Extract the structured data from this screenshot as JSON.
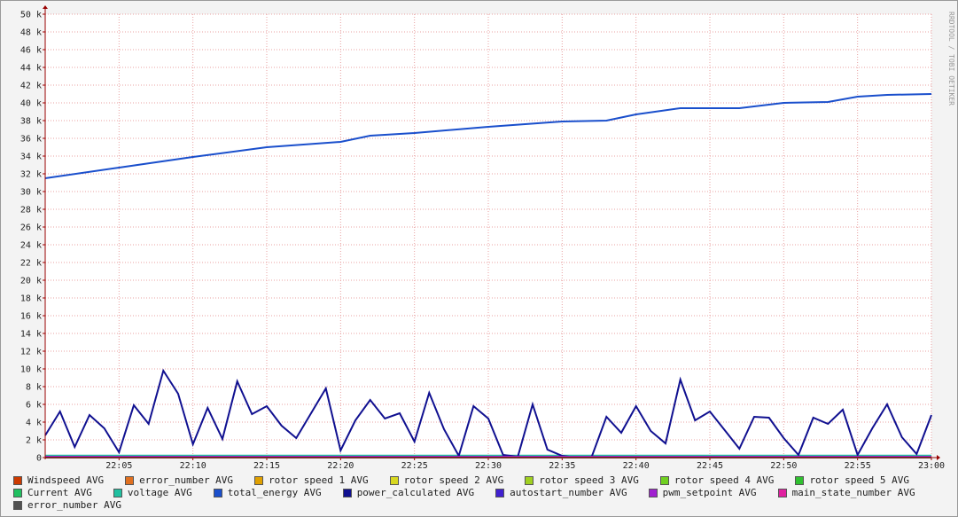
{
  "chart_data": {
    "type": "line",
    "watermark": "RRDTOOL / TOBI OETIKER",
    "x": [
      "22:00",
      "22:01",
      "22:02",
      "22:03",
      "22:04",
      "22:05",
      "22:06",
      "22:07",
      "22:08",
      "22:09",
      "22:10",
      "22:11",
      "22:12",
      "22:13",
      "22:14",
      "22:15",
      "22:16",
      "22:17",
      "22:18",
      "22:19",
      "22:20",
      "22:21",
      "22:22",
      "22:23",
      "22:24",
      "22:25",
      "22:26",
      "22:27",
      "22:28",
      "22:29",
      "22:30",
      "22:31",
      "22:32",
      "22:33",
      "22:34",
      "22:35",
      "22:36",
      "22:37",
      "22:38",
      "22:39",
      "22:40",
      "22:41",
      "22:42",
      "22:43",
      "22:44",
      "22:45",
      "22:46",
      "22:47",
      "22:48",
      "22:49",
      "22:50",
      "22:51",
      "22:52",
      "22:53",
      "22:54",
      "22:55",
      "22:56",
      "22:57",
      "22:58",
      "22:59",
      "23:00"
    ],
    "xlim": [
      "22:00",
      "23:00"
    ],
    "xticks": [
      "22:05",
      "22:10",
      "22:15",
      "22:20",
      "22:25",
      "22:30",
      "22:35",
      "22:40",
      "22:45",
      "22:50",
      "22:55",
      "23:00"
    ],
    "ylim": [
      0,
      50000
    ],
    "yticks": [
      {
        "value": 0,
        "label": "0"
      },
      {
        "value": 2000,
        "label": "2 k"
      },
      {
        "value": 4000,
        "label": "4 k"
      },
      {
        "value": 6000,
        "label": "6 k"
      },
      {
        "value": 8000,
        "label": "8 k"
      },
      {
        "value": 10000,
        "label": "10 k"
      },
      {
        "value": 12000,
        "label": "12 k"
      },
      {
        "value": 14000,
        "label": "14 k"
      },
      {
        "value": 16000,
        "label": "16 k"
      },
      {
        "value": 18000,
        "label": "18 k"
      },
      {
        "value": 20000,
        "label": "20 k"
      },
      {
        "value": 22000,
        "label": "22 k"
      },
      {
        "value": 24000,
        "label": "24 k"
      },
      {
        "value": 26000,
        "label": "26 k"
      },
      {
        "value": 28000,
        "label": "28 k"
      },
      {
        "value": 30000,
        "label": "30 k"
      },
      {
        "value": 32000,
        "label": "32 k"
      },
      {
        "value": 34000,
        "label": "34 k"
      },
      {
        "value": 36000,
        "label": "36 k"
      },
      {
        "value": 38000,
        "label": "38 k"
      },
      {
        "value": 40000,
        "label": "40 k"
      },
      {
        "value": 42000,
        "label": "42 k"
      },
      {
        "value": 44000,
        "label": "44 k"
      },
      {
        "value": 46000,
        "label": "46 k"
      },
      {
        "value": 48000,
        "label": "48 k"
      },
      {
        "value": 50000,
        "label": "50 k"
      }
    ],
    "grid": true,
    "series": [
      {
        "name": "Windspeed AVG",
        "color": "#cc3a00",
        "x": [
          "22:00",
          "23:00"
        ],
        "values": [
          5,
          5
        ]
      },
      {
        "name": "error_number AVG",
        "color": "#e07020",
        "x": [
          "22:00",
          "23:00"
        ],
        "values": [
          0,
          0
        ]
      },
      {
        "name": "rotor speed 1 AVG",
        "color": "#e0a000",
        "x": [
          "22:00",
          "23:00"
        ],
        "values": [
          0,
          0
        ]
      },
      {
        "name": "rotor speed 2 AVG",
        "color": "#d8d820",
        "x": [
          "22:00",
          "23:00"
        ],
        "values": [
          0,
          0
        ]
      },
      {
        "name": "rotor speed 3 AVG",
        "color": "#a0d020",
        "x": [
          "22:00",
          "23:00"
        ],
        "values": [
          0,
          0
        ]
      },
      {
        "name": "rotor speed 4 AVG",
        "color": "#70d020",
        "x": [
          "22:00",
          "23:00"
        ],
        "values": [
          0,
          0
        ]
      },
      {
        "name": "rotor speed 5 AVG",
        "color": "#30c030",
        "x": [
          "22:00",
          "23:00"
        ],
        "values": [
          0,
          0
        ]
      },
      {
        "name": "Current AVG",
        "color": "#20c060",
        "x": [
          "22:00",
          "23:00"
        ],
        "values": [
          0,
          0
        ]
      },
      {
        "name": "voltage AVG",
        "color": "#20c0a0",
        "x": [
          "22:00",
          "23:00"
        ],
        "values": [
          230,
          230
        ]
      },
      {
        "name": "total_energy AVG",
        "color": "#1a4fcc",
        "x": [
          "22:00",
          "22:05",
          "22:10",
          "22:15",
          "22:20",
          "22:22",
          "22:25",
          "22:30",
          "22:35",
          "22:38",
          "22:40",
          "22:43",
          "22:47",
          "22:50",
          "22:53",
          "22:55",
          "22:57",
          "23:00"
        ],
        "values": [
          31500,
          32700,
          33900,
          35000,
          35600,
          36300,
          36600,
          37300,
          37900,
          38000,
          38700,
          39400,
          39400,
          40000,
          40100,
          40700,
          40900,
          41000
        ]
      },
      {
        "name": "power_calculated AVG",
        "color": "#101090",
        "values": [
          2500,
          5200,
          1200,
          4800,
          3300,
          600,
          5900,
          3800,
          9800,
          7200,
          1500,
          5600,
          2100,
          8600,
          4900,
          5800,
          3600,
          2200,
          5000,
          7800,
          800,
          4200,
          6500,
          4400,
          5000,
          1800,
          7300,
          3200,
          200,
          5800,
          4400,
          300,
          100,
          6000,
          900,
          200,
          0,
          100,
          4600,
          2800,
          5800,
          3000,
          1600,
          8800,
          4200,
          5200,
          3100,
          1000,
          4600,
          4500,
          2200,
          300,
          4500,
          3800,
          5400,
          300,
          3300,
          6000,
          2300,
          400,
          4800
        ]
      },
      {
        "name": "autostart_number AVG",
        "color": "#4020d0",
        "x": [
          "22:00",
          "23:00"
        ],
        "values": [
          0,
          0
        ]
      },
      {
        "name": "pwm_setpoint AVG",
        "color": "#a020d0",
        "x": [
          "22:00",
          "23:00"
        ],
        "values": [
          100,
          100
        ]
      },
      {
        "name": "main_state_number AVG",
        "color": "#e020a0",
        "x": [
          "22:00",
          "23:00"
        ],
        "values": [
          0,
          0
        ]
      },
      {
        "name": "error_number AVG",
        "color": "#505050",
        "x": [
          "22:00",
          "23:00"
        ],
        "values": [
          0,
          0
        ]
      }
    ]
  }
}
